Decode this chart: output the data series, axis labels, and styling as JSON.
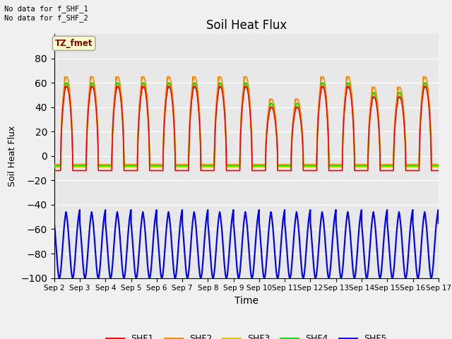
{
  "title": "Soil Heat Flux",
  "xlabel": "Time",
  "ylabel": "Soil Heat Flux",
  "ylim": [
    -100,
    100
  ],
  "yticks": [
    -100,
    -80,
    -60,
    -40,
    -20,
    0,
    20,
    40,
    60,
    80
  ],
  "num_days": 15,
  "colors": {
    "SHF1": "#ff0000",
    "SHF2": "#ff8800",
    "SHF3": "#cccc00",
    "SHF4": "#00dd00",
    "SHF5": "#0000ff"
  },
  "bg_color": "#e8e8e8",
  "plot_bg": "#f0f0f0",
  "annotation_text": "No data for f_SHF_1\nNo data for f_SHF_2",
  "legend_label": "TZ_fmet",
  "grid_color": "#d8d8d8",
  "line_width": 1.2
}
